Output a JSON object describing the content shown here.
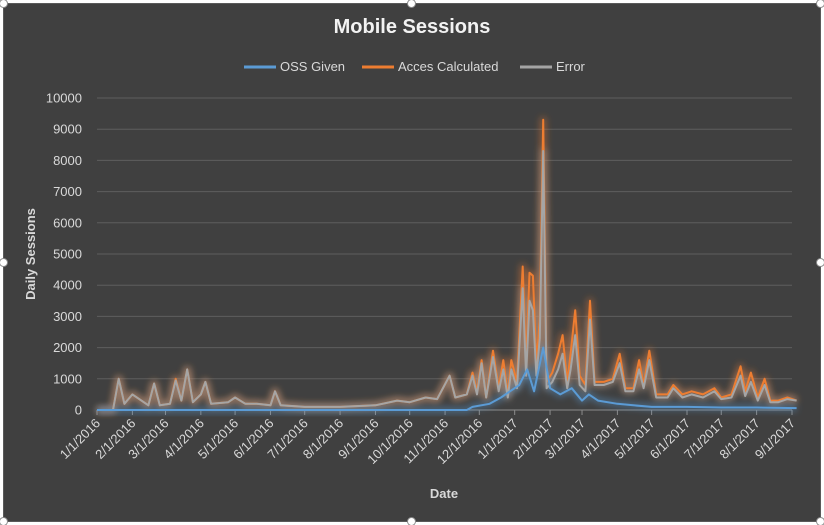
{
  "chart_data": {
    "type": "line",
    "title": "Mobile Sessions",
    "xlabel": "Date",
    "ylabel": "Daily Sessions",
    "ylim": [
      0,
      10000
    ],
    "yticks": [
      0,
      1000,
      2000,
      3000,
      4000,
      5000,
      6000,
      7000,
      8000,
      9000,
      10000
    ],
    "xticks": [
      "1/1/2016",
      "2/1/2016",
      "3/1/2016",
      "4/1/2016",
      "5/1/2016",
      "6/1/2016",
      "7/1/2016",
      "8/1/2016",
      "9/1/2016",
      "10/1/2016",
      "11/1/2016",
      "12/1/2016",
      "1/1/2017",
      "2/1/2017",
      "3/1/2017",
      "4/1/2017",
      "5/1/2017",
      "6/1/2017",
      "7/1/2017",
      "8/1/2017",
      "9/1/2017"
    ],
    "grid": true,
    "legend_position": "top",
    "series": [
      {
        "name": "OSS Given",
        "color": "#5b9bd5",
        "points": [
          [
            "1/1/2016",
            0
          ],
          [
            "11/20/2016",
            0
          ],
          [
            "11/25/2016",
            100
          ],
          [
            "12/10/2016",
            200
          ],
          [
            "12/20/2016",
            400
          ],
          [
            "1/5/2017",
            800
          ],
          [
            "1/12/2017",
            1300
          ],
          [
            "1/18/2017",
            600
          ],
          [
            "1/26/2017",
            2000
          ],
          [
            "2/1/2017",
            700
          ],
          [
            "2/10/2017",
            500
          ],
          [
            "2/20/2017",
            700
          ],
          [
            "3/1/2017",
            300
          ],
          [
            "3/7/2017",
            500
          ],
          [
            "3/15/2017",
            300
          ],
          [
            "4/1/2017",
            200
          ],
          [
            "4/15/2017",
            150
          ],
          [
            "5/1/2017",
            100
          ],
          [
            "6/1/2017",
            100
          ],
          [
            "7/1/2017",
            80
          ],
          [
            "8/1/2017",
            80
          ],
          [
            "9/5/2017",
            60
          ]
        ]
      },
      {
        "name": "Acces Calculated",
        "color": "#ed7d31",
        "points": [
          [
            "1/1/2016",
            0
          ],
          [
            "1/15/2016",
            0
          ],
          [
            "1/20/2016",
            1000
          ],
          [
            "1/25/2016",
            200
          ],
          [
            "2/1/2016",
            500
          ],
          [
            "2/15/2016",
            150
          ],
          [
            "2/20/2016",
            850
          ],
          [
            "2/25/2016",
            150
          ],
          [
            "3/5/2016",
            200
          ],
          [
            "3/10/2016",
            1000
          ],
          [
            "3/15/2016",
            300
          ],
          [
            "3/20/2016",
            1300
          ],
          [
            "3/25/2016",
            250
          ],
          [
            "4/1/2016",
            500
          ],
          [
            "4/5/2016",
            900
          ],
          [
            "4/10/2016",
            200
          ],
          [
            "4/25/2016",
            250
          ],
          [
            "5/1/2016",
            400
          ],
          [
            "5/10/2016",
            200
          ],
          [
            "5/20/2016",
            200
          ],
          [
            "6/1/2016",
            150
          ],
          [
            "6/5/2016",
            600
          ],
          [
            "6/10/2016",
            150
          ],
          [
            "7/1/2016",
            100
          ],
          [
            "8/1/2016",
            100
          ],
          [
            "9/1/2016",
            150
          ],
          [
            "9/20/2016",
            300
          ],
          [
            "10/1/2016",
            250
          ],
          [
            "10/15/2016",
            400
          ],
          [
            "10/25/2016",
            350
          ],
          [
            "11/5/2016",
            1100
          ],
          [
            "11/10/2016",
            400
          ],
          [
            "11/20/2016",
            500
          ],
          [
            "11/25/2016",
            1200
          ],
          [
            "11/29/2016",
            600
          ],
          [
            "12/3/2016",
            1600
          ],
          [
            "12/7/2016",
            400
          ],
          [
            "12/13/2016",
            1900
          ],
          [
            "12/18/2016",
            700
          ],
          [
            "12/22/2016",
            1600
          ],
          [
            "12/26/2016",
            500
          ],
          [
            "12/29/2016",
            1600
          ],
          [
            "1/3/2017",
            900
          ],
          [
            "1/8/2017",
            4600
          ],
          [
            "1/11/2017",
            1400
          ],
          [
            "1/14/2017",
            4400
          ],
          [
            "1/17/2017",
            4300
          ],
          [
            "1/20/2017",
            1500
          ],
          [
            "1/23/2017",
            2900
          ],
          [
            "1/26/2017",
            9300
          ],
          [
            "1/29/2017",
            900
          ],
          [
            "2/3/2017",
            1200
          ],
          [
            "2/8/2017",
            1800
          ],
          [
            "2/12/2017",
            2400
          ],
          [
            "2/16/2017",
            900
          ],
          [
            "2/19/2017",
            1800
          ],
          [
            "2/23/2017",
            3200
          ],
          [
            "2/27/2017",
            1100
          ],
          [
            "3/4/2017",
            800
          ],
          [
            "3/8/2017",
            3500
          ],
          [
            "3/12/2017",
            900
          ],
          [
            "3/20/2017",
            900
          ],
          [
            "3/28/2017",
            1000
          ],
          [
            "4/3/2017",
            1800
          ],
          [
            "4/8/2017",
            700
          ],
          [
            "4/15/2017",
            700
          ],
          [
            "4/20/2017",
            1600
          ],
          [
            "4/24/2017",
            800
          ],
          [
            "4/29/2017",
            1900
          ],
          [
            "5/5/2017",
            500
          ],
          [
            "5/15/2017",
            500
          ],
          [
            "5/20/2017",
            800
          ],
          [
            "5/28/2017",
            500
          ],
          [
            "6/5/2017",
            600
          ],
          [
            "6/15/2017",
            500
          ],
          [
            "6/25/2017",
            700
          ],
          [
            "7/1/2017",
            400
          ],
          [
            "7/10/2017",
            500
          ],
          [
            "7/18/2017",
            1400
          ],
          [
            "7/22/2017",
            600
          ],
          [
            "7/27/2017",
            1200
          ],
          [
            "8/2/2017",
            400
          ],
          [
            "8/8/2017",
            1000
          ],
          [
            "8/13/2017",
            300
          ],
          [
            "8/20/2017",
            300
          ],
          [
            "8/28/2017",
            400
          ],
          [
            "9/5/2017",
            300
          ]
        ]
      },
      {
        "name": "Error",
        "color": "#a5a5a5",
        "points": [
          [
            "1/1/2016",
            0
          ],
          [
            "1/15/2016",
            0
          ],
          [
            "1/20/2016",
            1000
          ],
          [
            "1/25/2016",
            200
          ],
          [
            "2/1/2016",
            500
          ],
          [
            "2/15/2016",
            150
          ],
          [
            "2/20/2016",
            850
          ],
          [
            "2/25/2016",
            150
          ],
          [
            "3/5/2016",
            200
          ],
          [
            "3/10/2016",
            950
          ],
          [
            "3/15/2016",
            300
          ],
          [
            "3/20/2016",
            1300
          ],
          [
            "3/25/2016",
            250
          ],
          [
            "4/1/2016",
            500
          ],
          [
            "4/5/2016",
            900
          ],
          [
            "4/10/2016",
            200
          ],
          [
            "4/25/2016",
            250
          ],
          [
            "5/1/2016",
            400
          ],
          [
            "5/10/2016",
            200
          ],
          [
            "5/20/2016",
            200
          ],
          [
            "6/1/2016",
            150
          ],
          [
            "6/5/2016",
            600
          ],
          [
            "6/10/2016",
            150
          ],
          [
            "7/1/2016",
            100
          ],
          [
            "8/1/2016",
            100
          ],
          [
            "9/1/2016",
            150
          ],
          [
            "9/20/2016",
            300
          ],
          [
            "10/1/2016",
            250
          ],
          [
            "10/15/2016",
            400
          ],
          [
            "10/25/2016",
            350
          ],
          [
            "11/5/2016",
            1100
          ],
          [
            "11/10/2016",
            400
          ],
          [
            "11/20/2016",
            500
          ],
          [
            "11/25/2016",
            1100
          ],
          [
            "11/29/2016",
            500
          ],
          [
            "12/3/2016",
            1500
          ],
          [
            "12/7/2016",
            400
          ],
          [
            "12/13/2016",
            1700
          ],
          [
            "12/18/2016",
            600
          ],
          [
            "12/22/2016",
            1300
          ],
          [
            "12/26/2016",
            400
          ],
          [
            "12/29/2016",
            1300
          ],
          [
            "1/3/2017",
            700
          ],
          [
            "1/8/2017",
            3900
          ],
          [
            "1/11/2017",
            1100
          ],
          [
            "1/14/2017",
            3500
          ],
          [
            "1/17/2017",
            3200
          ],
          [
            "1/20/2017",
            1100
          ],
          [
            "1/23/2017",
            2300
          ],
          [
            "1/26/2017",
            8300
          ],
          [
            "1/29/2017",
            700
          ],
          [
            "2/3/2017",
            900
          ],
          [
            "2/8/2017",
            1300
          ],
          [
            "2/12/2017",
            1800
          ],
          [
            "2/16/2017",
            700
          ],
          [
            "2/19/2017",
            1300
          ],
          [
            "2/23/2017",
            2400
          ],
          [
            "2/27/2017",
            800
          ],
          [
            "3/4/2017",
            600
          ],
          [
            "3/8/2017",
            2900
          ],
          [
            "3/12/2017",
            800
          ],
          [
            "3/20/2017",
            800
          ],
          [
            "3/28/2017",
            900
          ],
          [
            "4/3/2017",
            1500
          ],
          [
            "4/8/2017",
            600
          ],
          [
            "4/15/2017",
            600
          ],
          [
            "4/20/2017",
            1300
          ],
          [
            "4/24/2017",
            700
          ],
          [
            "4/29/2017",
            1600
          ],
          [
            "5/5/2017",
            400
          ],
          [
            "5/15/2017",
            400
          ],
          [
            "5/20/2017",
            700
          ],
          [
            "5/28/2017",
            400
          ],
          [
            "6/5/2017",
            500
          ],
          [
            "6/15/2017",
            400
          ],
          [
            "6/25/2017",
            600
          ],
          [
            "7/1/2017",
            350
          ],
          [
            "7/10/2017",
            400
          ],
          [
            "7/18/2017",
            1100
          ],
          [
            "7/22/2017",
            450
          ],
          [
            "7/27/2017",
            900
          ],
          [
            "8/2/2017",
            300
          ],
          [
            "8/8/2017",
            800
          ],
          [
            "8/13/2017",
            250
          ],
          [
            "8/20/2017",
            250
          ],
          [
            "8/28/2017",
            350
          ],
          [
            "9/5/2017",
            300
          ]
        ]
      }
    ]
  }
}
